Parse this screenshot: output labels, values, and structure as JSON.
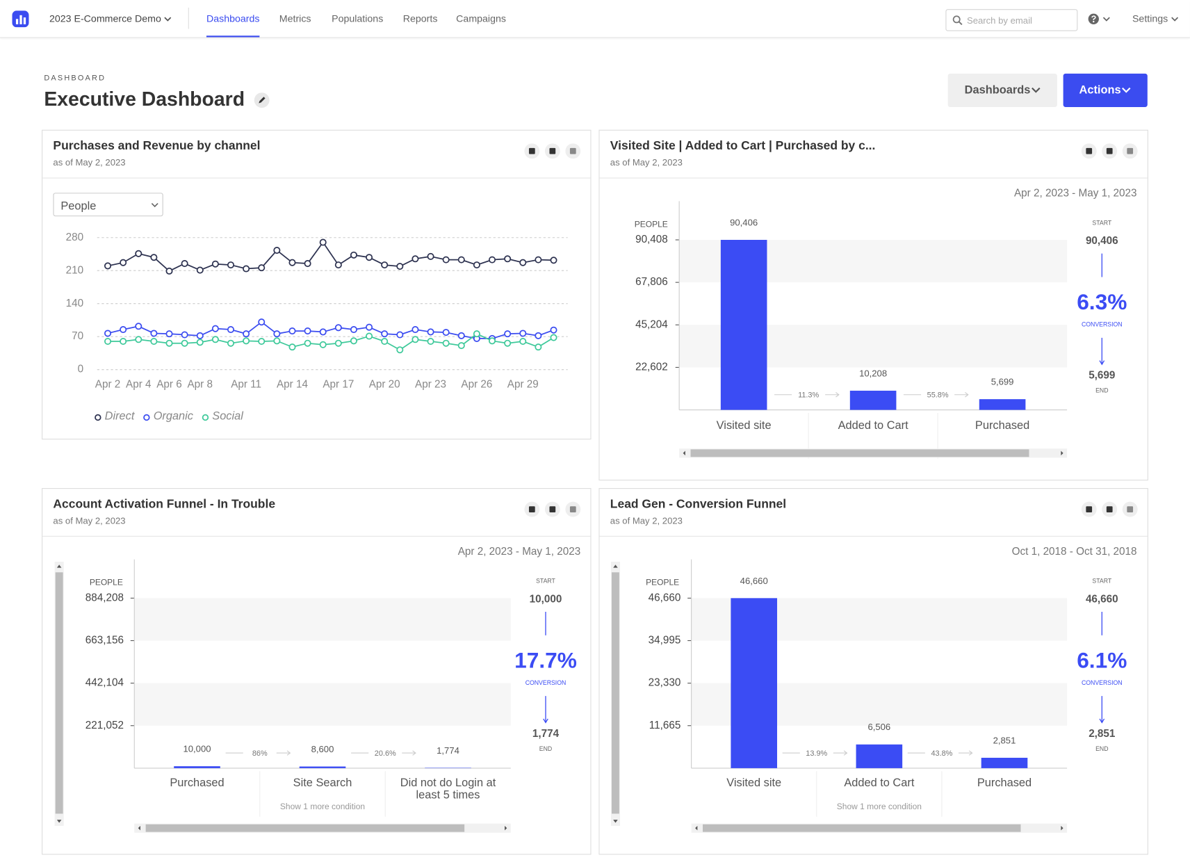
{
  "nav": {
    "brand": "2023 E-Commerce Demo",
    "links": [
      "Dashboards",
      "Metrics",
      "Populations",
      "Reports",
      "Campaigns"
    ],
    "search_placeholder": "Search by email",
    "settings": "Settings"
  },
  "header": {
    "eyebrow": "DASHBOARD",
    "title": "Executive Dashboard",
    "buttons": [
      "Dashboards",
      "Actions"
    ]
  },
  "chart_data": [
    {
      "type": "line",
      "title": "Purchases and Revenue by channel",
      "subtitle": "as of May 2, 2023",
      "selector": "People",
      "categories": [
        "Apr 2",
        null,
        "Apr 4",
        null,
        "Apr 6",
        null,
        "Apr 8",
        null,
        null,
        "Apr 11",
        null,
        null,
        "Apr 14",
        null,
        null,
        "Apr 17",
        null,
        null,
        "Apr 20",
        null,
        null,
        "Apr 23",
        null,
        null,
        "Apr 26",
        null,
        null,
        "Apr 29",
        null,
        null
      ],
      "series": [
        {
          "name": "Direct",
          "color": "#2d3250",
          "values": [
            220,
            227,
            246,
            238,
            209,
            225,
            211,
            224,
            222,
            214,
            216,
            253,
            227,
            225,
            270,
            222,
            243,
            238,
            222,
            219,
            235,
            240,
            233,
            233,
            222,
            233,
            235,
            227,
            233,
            232
          ]
        },
        {
          "name": "Organic",
          "color": "#3b4cf0",
          "values": [
            77,
            85,
            92,
            77,
            76,
            74,
            72,
            87,
            85,
            76,
            101,
            76,
            82,
            82,
            80,
            89,
            85,
            90,
            76,
            74,
            85,
            80,
            79,
            72,
            66,
            66,
            76,
            77,
            72,
            84
          ]
        },
        {
          "name": "Social",
          "color": "#3ec99a",
          "values": [
            60,
            60,
            64,
            60,
            56,
            56,
            58,
            64,
            56,
            61,
            60,
            61,
            48,
            56,
            53,
            56,
            61,
            71,
            60,
            42,
            64,
            60,
            56,
            51,
            76,
            61,
            56,
            60,
            48,
            68
          ]
        }
      ],
      "ylim": [
        0,
        280
      ],
      "yticks": [
        0,
        70,
        140,
        210,
        280
      ],
      "grid": true,
      "legend": "bottom-left"
    },
    {
      "type": "funnel",
      "title": "Visited Site | Added to Cart | Purchased by c...",
      "subtitle": "as of May 2, 2023",
      "date_range": "Apr 2, 2023 - May 1, 2023",
      "y_label": "PEOPLE",
      "categories": [
        "Visited site",
        "Added to Cart",
        "Purchased"
      ],
      "category_notes": [
        null,
        null,
        null
      ],
      "values": [
        90406,
        10208,
        5699
      ],
      "value_labels": [
        "90,406",
        "10,208",
        "5,699"
      ],
      "color": "#3b4cf4",
      "step_labels": [
        "11.3%",
        "55.8%"
      ],
      "ylim": [
        0,
        113010
      ],
      "yticks": [
        {
          "value": 22602,
          "label": "22,602"
        },
        {
          "value": 45204,
          "label": "45,204"
        },
        {
          "value": 67806,
          "label": "67,806"
        },
        {
          "value": 90408,
          "label": "90,408"
        }
      ],
      "start_caption": "START",
      "start": "90,406",
      "conversion": "6.3%",
      "conversion_caption": "CONVERSION",
      "end": "5,699",
      "end_caption": "END"
    },
    {
      "type": "funnel",
      "title": "Account Activation Funnel - In Trouble",
      "subtitle": "as of May 2, 2023",
      "date_range": "Apr 2, 2023 - May 1, 2023",
      "y_label": "PEOPLE",
      "categories": [
        "Purchased",
        "Site Search",
        "Did not do Login at least 5 times"
      ],
      "category_notes": [
        null,
        "Show 1 more condition",
        null
      ],
      "values": [
        10000,
        8600,
        1774
      ],
      "value_labels": [
        "10,000",
        "8,600",
        "1,774"
      ],
      "color": "#3b4cf4",
      "step_labels": [
        "86%",
        "20.6%"
      ],
      "ylim": [
        0,
        1105260
      ],
      "yticks": [
        {
          "value": 221052,
          "label": "221,052"
        },
        {
          "value": 442104,
          "label": "442,104"
        },
        {
          "value": 663156,
          "label": "663,156"
        },
        {
          "value": 884208,
          "label": "884,208"
        }
      ],
      "start_caption": "START",
      "start": "10,000",
      "conversion": "17.7%",
      "conversion_caption": "CONVERSION",
      "end": "1,774",
      "end_caption": "END"
    },
    {
      "type": "funnel",
      "title": "Lead Gen - Conversion Funnel",
      "subtitle": "as of May 2, 2023",
      "date_range": "Oct 1, 2018 - Oct 31, 2018",
      "y_label": "PEOPLE",
      "categories": [
        "Visited site",
        "Added to Cart",
        "Purchased"
      ],
      "category_notes": [
        null,
        "Show 1 more condition",
        null
      ],
      "values": [
        46660,
        6506,
        2851
      ],
      "value_labels": [
        "46,660",
        "6,506",
        "2,851"
      ],
      "color": "#3b4cf4",
      "step_labels": [
        "13.9%",
        "43.8%"
      ],
      "ylim": [
        0,
        58325
      ],
      "yticks": [
        {
          "value": 11665,
          "label": "11,665"
        },
        {
          "value": 23330,
          "label": "23,330"
        },
        {
          "value": 34995,
          "label": "34,995"
        },
        {
          "value": 46660,
          "label": "46,660"
        }
      ],
      "start_caption": "START",
      "start": "46,660",
      "conversion": "6.1%",
      "conversion_caption": "CONVERSION",
      "end": "2,851",
      "end_caption": "END"
    }
  ]
}
